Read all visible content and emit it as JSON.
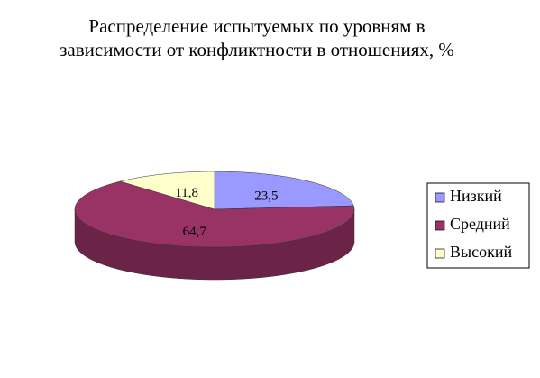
{
  "chart_data": {
    "type": "pie3d",
    "title": "Распределение испытуемых по уровням в зависимости от конфликтности в отношениях, %",
    "categories": [
      "Низкий",
      "Средний",
      "Высокий"
    ],
    "values": [
      23.5,
      64.7,
      11.8
    ],
    "value_labels": [
      "23,5",
      "64,7",
      "11,8"
    ],
    "colors": [
      "#9999ff",
      "#993366",
      "#ffffcc"
    ],
    "legend": "right"
  }
}
